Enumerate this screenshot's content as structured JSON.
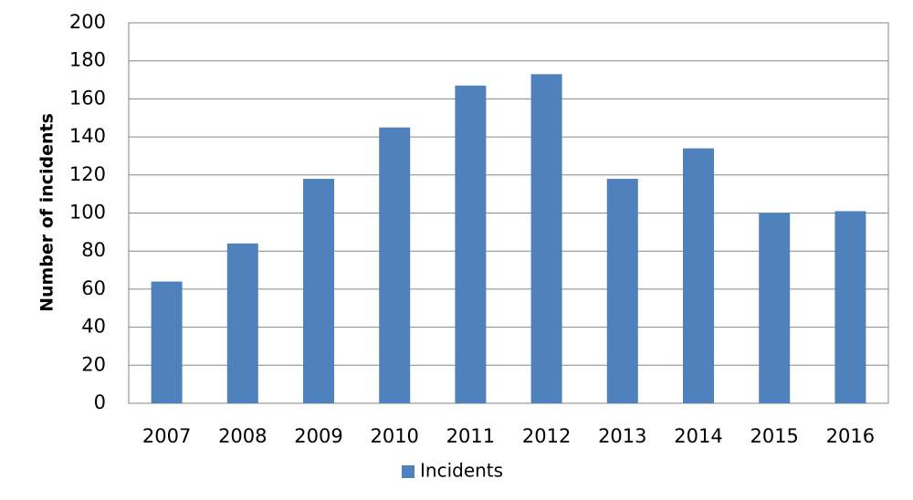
{
  "chart_data": {
    "type": "bar",
    "y_label": "Number of incidents",
    "categories": [
      "2007",
      "2008",
      "2009",
      "2010",
      "2011",
      "2012",
      "2013",
      "2014",
      "2015",
      "2016"
    ],
    "series": [
      {
        "name": "Incidents",
        "color": "#4f81bd",
        "values": [
          64,
          84,
          118,
          145,
          167,
          173,
          118,
          134,
          100,
          101
        ]
      }
    ],
    "ylim": [
      0,
      200
    ],
    "yticks": [
      0,
      20,
      40,
      60,
      80,
      100,
      120,
      140,
      160,
      180,
      200
    ],
    "grid": true,
    "legend": "bottom"
  }
}
